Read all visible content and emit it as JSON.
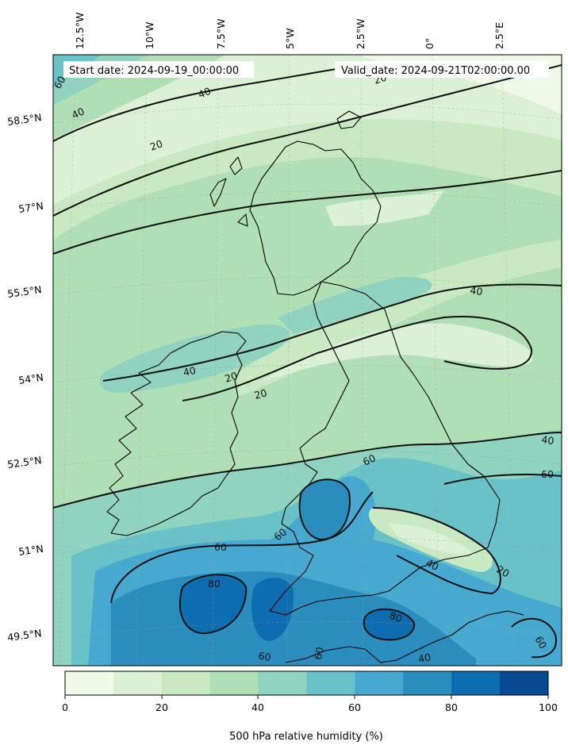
{
  "header": {
    "start_date": "Start date: 2024-09-19_00:00:00",
    "valid_date": "Valid_date: 2024-09-21T02:00:00.00"
  },
  "axes": {
    "lon_labels": [
      "12.5°W",
      "10°W",
      "7.5°W",
      "5°W",
      "2.5°W",
      "0°",
      "2.5°E"
    ],
    "lat_labels": [
      "58.5°N",
      "57°N",
      "55.5°N",
      "54°N",
      "52.5°N",
      "51°N",
      "49.5°N"
    ]
  },
  "contour_labels": [
    "40",
    "40",
    "20",
    "20",
    "40",
    "40",
    "20",
    "20",
    "40",
    "60",
    "60",
    "60",
    "60",
    "40",
    "80",
    "80",
    "60",
    "60",
    "40",
    "60",
    "60",
    "20"
  ],
  "colorbar": {
    "label": "500 hPa relative humidity (%)",
    "ticks": [
      "0",
      "20",
      "40",
      "60",
      "80",
      "100"
    ],
    "colors": [
      "#f0f9e8",
      "#dcf0d5",
      "#c9e9c2",
      "#b0dfb6",
      "#8fd3c0",
      "#69c2c8",
      "#48a9d0",
      "#2b8cbe",
      "#0e6db0",
      "#084a92"
    ]
  },
  "chart_data": {
    "type": "heatmap",
    "variable": "500 hPa relative humidity (%)",
    "value_range": [
      0,
      100
    ],
    "levels": [
      0,
      10,
      20,
      30,
      40,
      50,
      60,
      70,
      80,
      90,
      100
    ],
    "contour_lines": [
      20,
      40,
      60,
      80
    ],
    "longitude_ticks": [
      "12.5°W",
      "10°W",
      "7.5°W",
      "5°W",
      "2.5°W",
      "0°",
      "2.5°E"
    ],
    "latitude_ticks": [
      "58.5°N",
      "57°N",
      "55.5°N",
      "54°N",
      "52.5°N",
      "51°N",
      "49.5°N"
    ],
    "grid": true,
    "colorbar_position": "bottom"
  }
}
